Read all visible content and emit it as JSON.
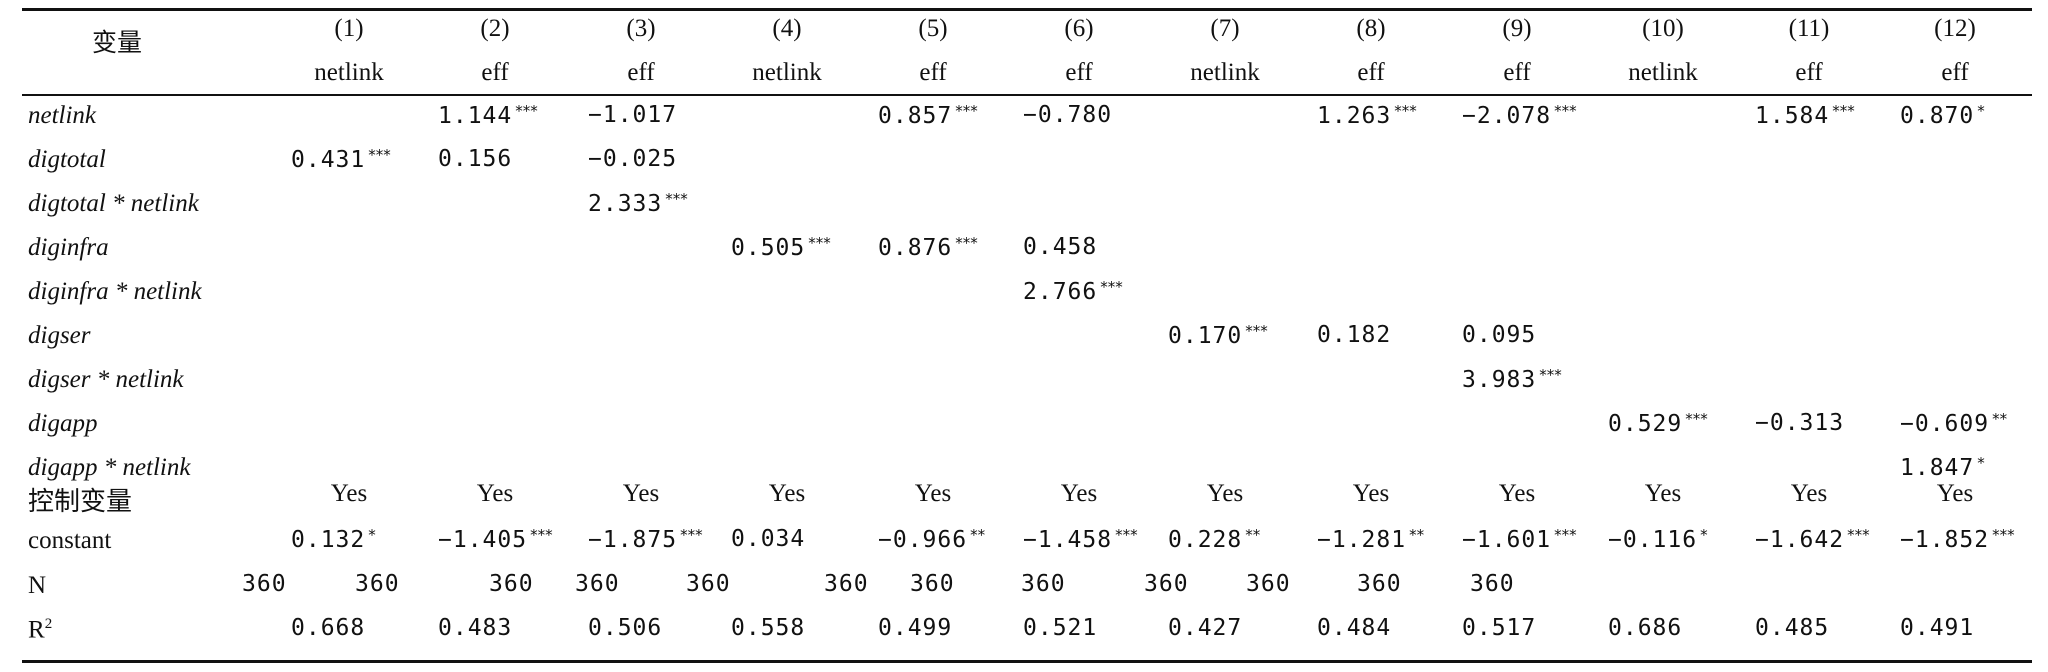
{
  "header": {
    "corner": "变量",
    "columns": [
      {
        "num": "(1)",
        "dep": "netlink"
      },
      {
        "num": "(2)",
        "dep": "eff"
      },
      {
        "num": "(3)",
        "dep": "eff"
      },
      {
        "num": "(4)",
        "dep": "netlink"
      },
      {
        "num": "(5)",
        "dep": "eff"
      },
      {
        "num": "(6)",
        "dep": "eff"
      },
      {
        "num": "(7)",
        "dep": "netlink"
      },
      {
        "num": "(8)",
        "dep": "eff"
      },
      {
        "num": "(9)",
        "dep": "eff"
      },
      {
        "num": "(10)",
        "dep": "netlink"
      },
      {
        "num": "(11)",
        "dep": "eff"
      },
      {
        "num": "(12)",
        "dep": "eff"
      }
    ]
  },
  "rows": [
    {
      "label": "netlink",
      "cells": [
        "",
        "1.144|***",
        "−1.017|",
        "",
        "0.857|***",
        "−0.780|",
        "",
        "1.263|***",
        "−2.078|***",
        "",
        "1.584|***",
        "0.870|*"
      ]
    },
    {
      "label": "digtotal",
      "cells": [
        "0.431|***",
        "0.156|",
        "−0.025|",
        "",
        "",
        "",
        "",
        "",
        "",
        "",
        "",
        ""
      ]
    },
    {
      "label": "digtotal * netlink",
      "cells": [
        "",
        "",
        "2.333|***",
        "",
        "",
        "",
        "",
        "",
        "",
        "",
        "",
        ""
      ]
    },
    {
      "label": "diginfra",
      "cells": [
        "",
        "",
        "",
        "0.505|***",
        "0.876|***",
        "0.458|",
        "",
        "",
        "",
        "",
        "",
        ""
      ]
    },
    {
      "label": "diginfra * netlink",
      "cells": [
        "",
        "",
        "",
        "",
        "",
        "2.766|***",
        "",
        "",
        "",
        "",
        "",
        ""
      ]
    },
    {
      "label": "digser",
      "cells": [
        "",
        "",
        "",
        "",
        "",
        "",
        "0.170|***",
        "0.182|",
        "0.095|",
        "",
        "",
        ""
      ]
    },
    {
      "label": "digser * netlink",
      "cells": [
        "",
        "",
        "",
        "",
        "",
        "",
        "",
        "",
        "3.983|***",
        "",
        "",
        ""
      ]
    },
    {
      "label": "digapp",
      "cells": [
        "",
        "",
        "",
        "",
        "",
        "",
        "",
        "",
        "",
        "0.529|***",
        "−0.313|",
        "−0.609|**"
      ]
    },
    {
      "label": "digapp * netlink",
      "cells": [
        "",
        "",
        "",
        "",
        "",
        "",
        "",
        "",
        "",
        "",
        "",
        "1.847|*"
      ]
    }
  ],
  "controls": {
    "label": "控制变量",
    "values": [
      "Yes",
      "Yes",
      "Yes",
      "Yes",
      "Yes",
      "Yes",
      "Yes",
      "Yes",
      "Yes",
      "Yes",
      "Yes",
      "Yes"
    ]
  },
  "constant": {
    "label": "constant",
    "cells": [
      "0.132|*",
      "−1.405|***",
      "−1.875|***",
      "0.034|",
      "−0.966|**",
      "−1.458|***",
      "0.228|**",
      "−1.281|**",
      "−1.601|***",
      "−0.116|*",
      "−1.642|***",
      "−1.852|***"
    ]
  },
  "n_row": {
    "label": "N",
    "values": [
      "360",
      "360",
      "360",
      "360",
      "360",
      "360",
      "360",
      "360",
      "360",
      "360",
      "360",
      "360"
    ]
  },
  "r2_row": {
    "label": "R",
    "label_sup": "2",
    "values": [
      "0.668",
      "0.483",
      "0.506",
      "0.558",
      "0.499",
      "0.521",
      "0.427",
      "0.484",
      "0.517",
      "0.686",
      "0.485",
      "0.491"
    ]
  }
}
